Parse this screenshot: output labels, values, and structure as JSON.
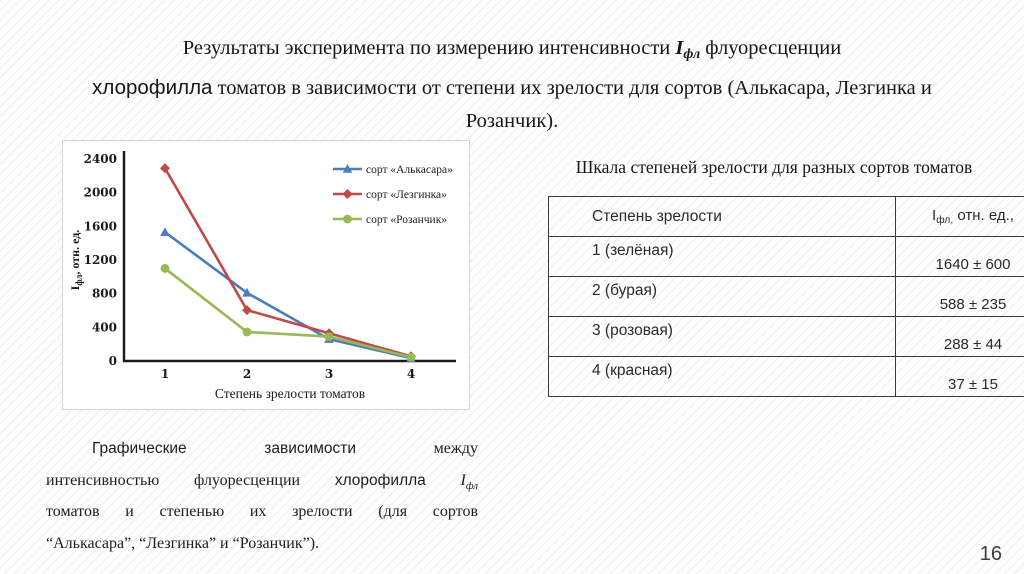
{
  "title": {
    "pre": "Результаты эксперимента по измерению интенсивности ",
    "formula_base": "I",
    "formula_sub": "фл",
    "post": " флуоресценции",
    "chlorophyll": "хлорофилла",
    "rest": " томатов в зависимости от степени их зрелости для сортов (Алькасара, Лезгинка и Розанчик)."
  },
  "chart_data": {
    "type": "line",
    "x": [
      1,
      2,
      3,
      4
    ],
    "xlabel": "Степень зрелости томатов",
    "ylabel": {
      "base": "I",
      "sub": "фл",
      "rest": ", отн. ед."
    },
    "ylim": [
      0,
      2400
    ],
    "yticks": [
      0,
      400,
      800,
      1200,
      1600,
      2000,
      2400
    ],
    "grid": false,
    "legend_position": "top-right",
    "series": [
      {
        "name": "сорт «Алькасара»",
        "color": "#4a7ebb",
        "marker": "triangle",
        "values": [
          1530,
          810,
          260,
          35
        ]
      },
      {
        "name": "сорт «Лезгинка»",
        "color": "#be4b48",
        "marker": "diamond",
        "values": [
          2290,
          605,
          330,
          55
        ]
      },
      {
        "name": "сорт «Розанчик»",
        "color": "#98b954",
        "marker": "circle",
        "values": [
          1100,
          345,
          290,
          45
        ]
      }
    ]
  },
  "table": {
    "title": "Шкала степеней зрелости для разных сортов томатов",
    "col1_header": "Степень зрелости",
    "col2_header": {
      "base": "I",
      "sub": "фл,",
      "rest": " отн. ед.,"
    },
    "rows": [
      {
        "degree": "1 (зелёная)",
        "value": "1640 ± 600"
      },
      {
        "degree": "2 (бурая)",
        "value": "588 ± 235"
      },
      {
        "degree": "3 (розовая)",
        "value": "288 ± 44"
      },
      {
        "degree": "4 (красная)",
        "value": "37 ± 15"
      }
    ]
  },
  "caption": {
    "line1": {
      "w1": "Графические",
      "w2": "зависимости",
      "w3": "между"
    },
    "line2": {
      "w1": "интенсивностью",
      "w2": "флуоресценции",
      "w3": "хлорофилла",
      "formula_base": "I",
      "formula_sub": "фл"
    },
    "line3": "томатов и степенью их зрелости (для сортов",
    "line4": "“Алькасара”, “Лезгинка” и “Розанчик”)."
  },
  "page_number": "16",
  "colors": {
    "series_blue": "#4a7ebb",
    "series_red": "#be4b48",
    "series_green": "#98b954",
    "axis": "#1a1a1a",
    "table_border": "#3a3a3a"
  }
}
